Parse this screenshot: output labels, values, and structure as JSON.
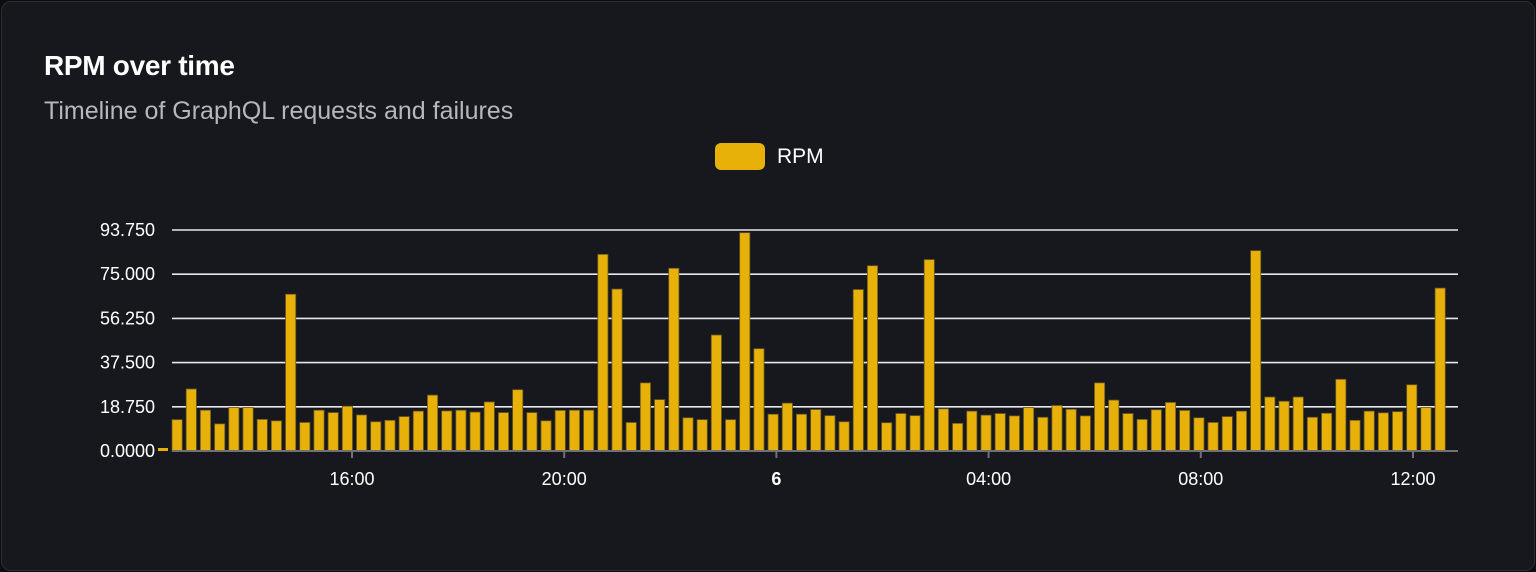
{
  "card": {
    "title": "RPM over time",
    "subtitle": "Timeline of GraphQL requests and failures"
  },
  "colors": {
    "bar": "#e8b10a",
    "bar_border": "#6b5a20",
    "grid": "#e6e8ee",
    "axis": "#707178"
  },
  "chart_data": {
    "type": "bar",
    "title": "RPM over time",
    "subtitle": "Timeline of GraphQL requests and failures",
    "legend": {
      "position": "top-center",
      "entries": [
        "RPM"
      ]
    },
    "series": [
      {
        "name": "RPM",
        "values": [
          13.3,
          26.3,
          17.3,
          11.5,
          18.5,
          18.5,
          13.4,
          12.8,
          66.5,
          12.1,
          17.3,
          16.3,
          19.0,
          15.3,
          12.4,
          13.0,
          14.6,
          16.9,
          23.7,
          17.0,
          17.3,
          16.5,
          20.8,
          16.3,
          26.0,
          16.3,
          12.8,
          17.2,
          17.3,
          17.3,
          83.4,
          68.7,
          12.1,
          28.9,
          21.8,
          77.5,
          14.1,
          13.3,
          49.2,
          13.3,
          92.6,
          43.4,
          15.6,
          20.3,
          15.6,
          17.6,
          15.0,
          12.4,
          68.5,
          78.6,
          12.0,
          15.9,
          15.0,
          81.2,
          17.9,
          11.7,
          16.9,
          15.2,
          15.9,
          14.9,
          18.5,
          14.3,
          19.3,
          17.7,
          14.9,
          28.9,
          21.6,
          15.9,
          13.4,
          17.5,
          20.6,
          17.2,
          14.1,
          12.1,
          14.6,
          16.9,
          85.0,
          22.9,
          21.1,
          22.9,
          14.3,
          16.0,
          30.4,
          13.0,
          16.9,
          16.2,
          16.7,
          28.1,
          18.5,
          69.1
        ]
      }
    ],
    "ylim": [
      0,
      93.75
    ],
    "yticks": [
      "0.0000",
      "18.750",
      "37.500",
      "56.250",
      "75.000",
      "93.750"
    ],
    "xticks": [
      {
        "label": "16:00",
        "bold": false
      },
      {
        "label": "20:00",
        "bold": false
      },
      {
        "label": "6",
        "bold": true
      },
      {
        "label": "04:00",
        "bold": false
      },
      {
        "label": "08:00",
        "bold": false
      },
      {
        "label": "12:00",
        "bold": false
      }
    ],
    "grid": true,
    "xlabel": "",
    "ylabel": ""
  }
}
